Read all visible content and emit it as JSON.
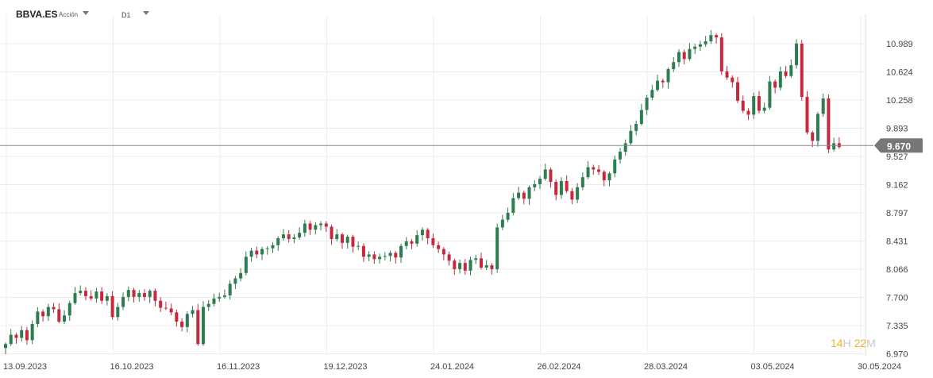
{
  "toolbar": {
    "symbol": "BBVA.ES",
    "instrument_type": "Acción",
    "timeframe": "D1"
  },
  "countdown": {
    "hours": "14",
    "h": "H",
    "minutes": "22",
    "m": "M"
  },
  "colors": {
    "up": "#2e7d4f",
    "down": "#c8283c",
    "grid": "#ececec",
    "price_line": "#888888",
    "price_tag": "#777777"
  },
  "chart_data": {
    "type": "candlestick",
    "current_price": 9.67,
    "current_price_label": "9.670",
    "y_ticks": [
      "10.989",
      "10.624",
      "10.258",
      "9.893",
      "9.527",
      "9.162",
      "8.797",
      "8.431",
      "8.066",
      "7.700",
      "7.335",
      "6.970"
    ],
    "ylim": [
      6.97,
      11.135
    ],
    "x_ticks": [
      "13.09.2023",
      "16.10.2023",
      "16.11.2023",
      "19.12.2023",
      "24.01.2024",
      "26.02.2024",
      "28.03.2024",
      "03.05.2024",
      "30.05.2024"
    ],
    "closes": [
      7.1,
      7.22,
      7.18,
      7.28,
      7.15,
      7.36,
      7.52,
      7.46,
      7.58,
      7.55,
      7.39,
      7.47,
      7.63,
      7.76,
      7.79,
      7.72,
      7.69,
      7.78,
      7.66,
      7.72,
      7.45,
      7.58,
      7.71,
      7.8,
      7.71,
      7.76,
      7.71,
      7.79,
      7.66,
      7.57,
      7.56,
      7.51,
      7.39,
      7.32,
      7.49,
      7.54,
      7.1,
      7.58,
      7.62,
      7.69,
      7.71,
      7.73,
      7.88,
      7.95,
      8.02,
      8.23,
      8.31,
      8.26,
      8.33,
      8.34,
      8.38,
      8.47,
      8.52,
      8.46,
      8.48,
      8.54,
      8.66,
      8.58,
      8.64,
      8.66,
      8.62,
      8.46,
      8.52,
      8.41,
      8.49,
      8.36,
      8.37,
      8.23,
      8.26,
      8.2,
      8.23,
      8.24,
      8.28,
      8.22,
      8.37,
      8.43,
      8.4,
      8.51,
      8.58,
      8.47,
      8.38,
      8.33,
      8.26,
      8.18,
      8.07,
      8.15,
      8.05,
      8.19,
      8.21,
      8.09,
      8.12,
      8.07,
      8.61,
      8.71,
      8.8,
      8.99,
      9.06,
      8.98,
      9.13,
      9.17,
      9.24,
      9.36,
      9.2,
      9.03,
      9.21,
      9.08,
      8.97,
      9.13,
      9.26,
      9.39,
      9.36,
      9.33,
      9.22,
      9.31,
      9.49,
      9.59,
      9.7,
      9.86,
      9.95,
      10.13,
      10.29,
      10.39,
      10.51,
      10.49,
      10.66,
      10.75,
      10.88,
      10.79,
      10.92,
      10.95,
      10.98,
      11.02,
      11.1,
      11.07,
      10.63,
      10.55,
      10.49,
      10.25,
      10.12,
      10.07,
      10.31,
      10.12,
      10.16,
      10.5,
      10.42,
      10.63,
      10.57,
      10.71,
      10.99,
      10.3,
      9.84,
      9.73,
      10.08,
      10.28,
      9.62,
      9.7,
      9.65
    ]
  }
}
